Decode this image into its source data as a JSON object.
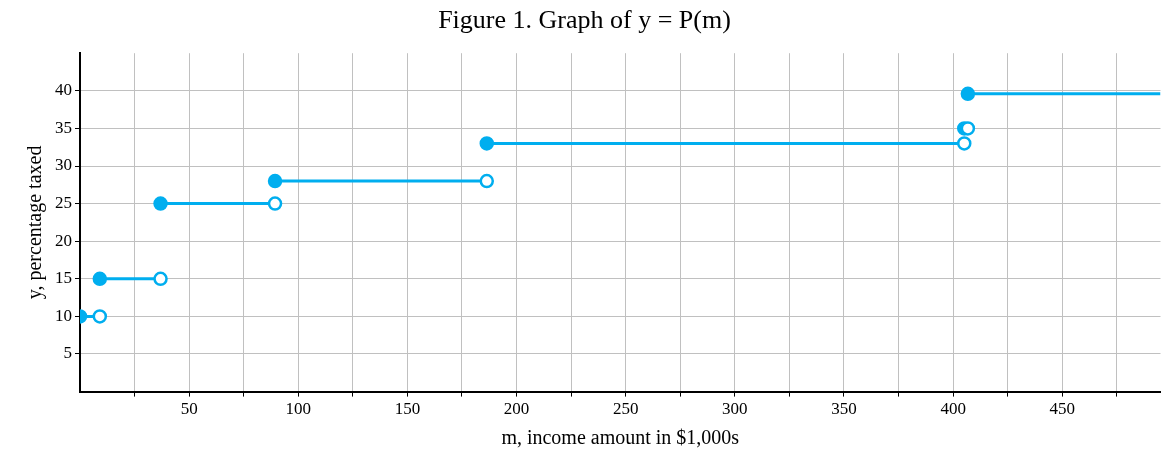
{
  "chart_data": {
    "type": "line",
    "title": "Figure 1. Graph of y = P(m)",
    "xlabel": "m, income amount in $1,000s",
    "ylabel": "y, percentage taxed",
    "series": [
      {
        "color": "#00aeef",
        "x": [
          0,
          9.075
        ],
        "values": [
          10,
          10
        ]
      },
      {
        "color": "#00aeef",
        "x": [
          9.075,
          36.9
        ],
        "values": [
          15,
          15
        ]
      },
      {
        "color": "#00aeef",
        "x": [
          36.9,
          89.35
        ],
        "values": [
          25,
          25
        ]
      },
      {
        "color": "#00aeef",
        "x": [
          89.35,
          186.35
        ],
        "values": [
          28,
          28
        ]
      },
      {
        "color": "#00aeef",
        "x": [
          186.35,
          405.1
        ],
        "values": [
          33,
          33
        ]
      },
      {
        "type": "scatter",
        "color": "#00aeef",
        "x": [
          405.1,
          406.75
        ],
        "values": [
          35,
          35
        ]
      },
      {
        "color": "#00aeef",
        "x": [
          406.75,
          495
        ],
        "values": [
          39.6,
          39.6
        ]
      }
    ],
    "xlim": [
      0,
      495
    ],
    "xticks": [
      {
        "value": 25,
        "label": null
      },
      50,
      {
        "value": 75,
        "label": null
      },
      100,
      {
        "value": 125,
        "label": null
      },
      150,
      {
        "value": 175,
        "label": null
      },
      200,
      {
        "value": 225,
        "label": null
      },
      250,
      {
        "value": 275,
        "label": null
      },
      300,
      {
        "value": 325,
        "label": null
      },
      350,
      {
        "value": 375,
        "label": null
      },
      400,
      {
        "value": 425,
        "label": null
      },
      450,
      {
        "value": 475,
        "label": null
      }
    ],
    "ylim": [
      0,
      45
    ],
    "yticks": [
      5,
      10,
      15,
      20,
      25,
      30,
      35,
      40
    ],
    "grid": true,
    "legend": false,
    "marker": "circle",
    "line_style": "solid"
  }
}
